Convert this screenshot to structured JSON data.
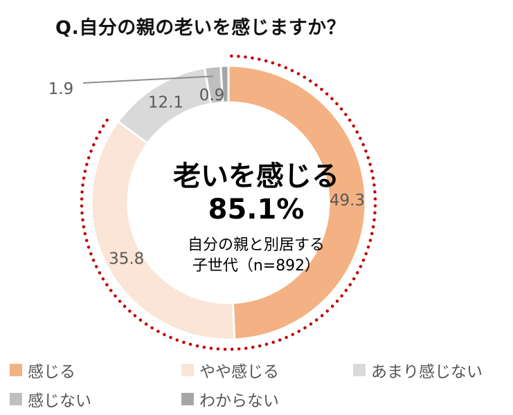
{
  "title": "Q.自分の親の老いを感じますか？",
  "center": {
    "headline": "老いを感じる",
    "value": "85.1%",
    "line1": "自分の親と別居する",
    "line2": "子世代（n=892）"
  },
  "chart_data": {
    "type": "pie",
    "donut": true,
    "title": "Q.自分の親の老いを感じますか？",
    "categories": [
      "感じる",
      "やや感じる",
      "あまり感じない",
      "感じない",
      "わからない"
    ],
    "values": [
      49.3,
      35.8,
      12.1,
      1.9,
      0.9
    ],
    "labels": [
      "49.3",
      "35.8",
      "12.1",
      "1.9",
      "0.9"
    ],
    "colors": [
      "#f4b183",
      "#fbe5d6",
      "#d9d9d9",
      "#bfbfbf",
      "#a6a6a6"
    ],
    "highlight": {
      "categories": [
        "感じる",
        "やや感じる"
      ],
      "total": 85.1,
      "style": "dotted-arc",
      "color": "#c00000"
    },
    "legend_position": "bottom"
  }
}
